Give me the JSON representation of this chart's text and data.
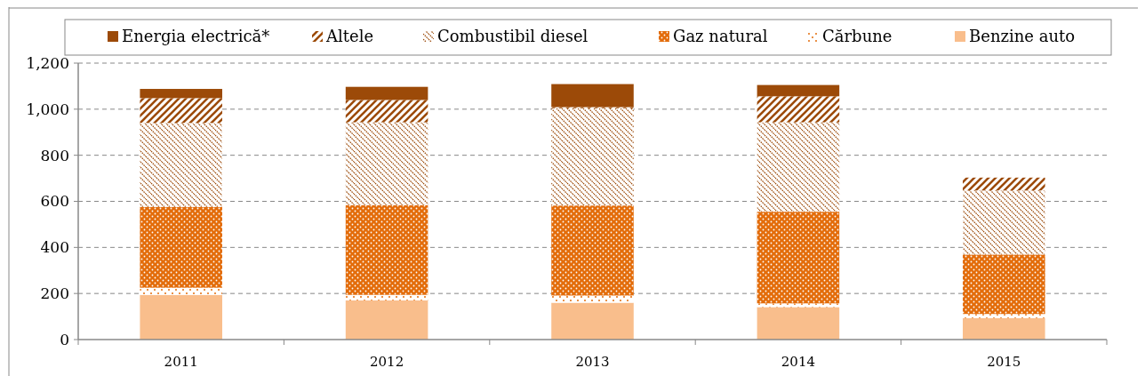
{
  "chart_data": {
    "type": "bar",
    "stacked": true,
    "categories": [
      "2011",
      "2012",
      "2013",
      "2014",
      "2015"
    ],
    "series": [
      {
        "name": "Benzine auto",
        "color": "#f9be8c",
        "values": [
          194,
          170,
          160,
          141,
          93
        ]
      },
      {
        "name": "Cărbune",
        "color": "#e36c0a",
        "values": [
          31,
          24,
          31,
          16,
          18
        ]
      },
      {
        "name": "Gaz natural",
        "color": "#e36c0a",
        "values": [
          351,
          390,
          391,
          398,
          258
        ]
      },
      {
        "name": "Combustibil diesel",
        "color": "#9c4a08",
        "values": [
          364,
          359,
          422,
          388,
          278
        ]
      },
      {
        "name": "Altele",
        "color": "#9c4a08",
        "values": [
          108,
          97,
          5,
          113,
          56
        ]
      },
      {
        "name": "Energia electrică*",
        "color": "#9c4a08",
        "values": [
          40,
          57,
          100,
          49,
          0
        ]
      }
    ],
    "ylim": [
      0,
      1200
    ],
    "yticks": [
      0,
      {
        "value": 200,
        "label": "200"
      },
      {
        "value": 400,
        "label": "400"
      },
      {
        "value": 600,
        "label": "600"
      },
      {
        "value": 800,
        "label": "800"
      },
      {
        "value": 1000,
        "label": "1,000"
      },
      {
        "value": 1200,
        "label": "1,200"
      }
    ],
    "grid": "y",
    "legend": "top"
  }
}
